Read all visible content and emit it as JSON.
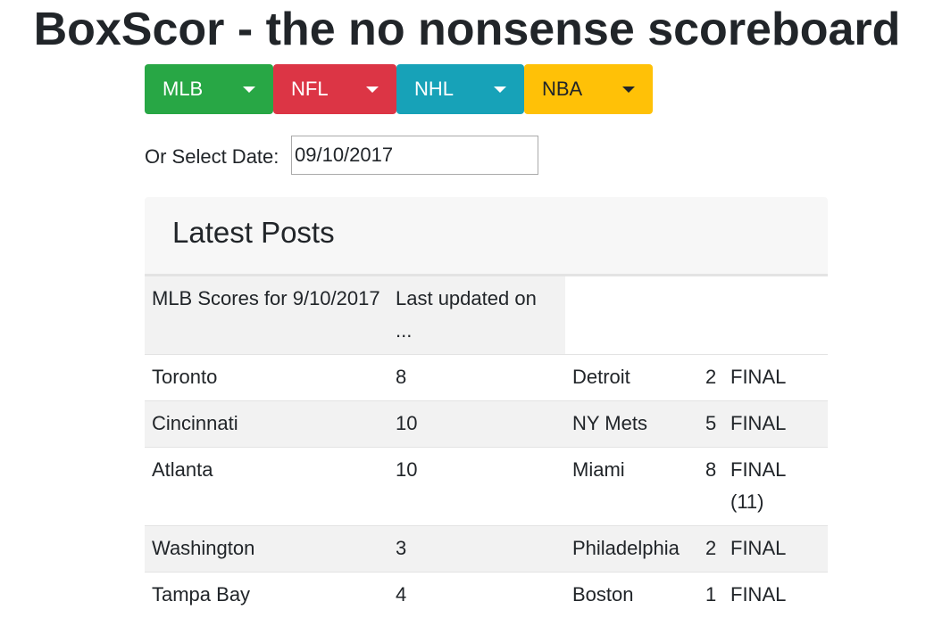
{
  "header": {
    "title": "BoxScor - the no nonsense scoreboard"
  },
  "buttons": [
    {
      "label": "MLB"
    },
    {
      "label": "NFL"
    },
    {
      "label": "NHL"
    },
    {
      "label": "NBA"
    }
  ],
  "date": {
    "label": "Or Select Date:",
    "value": "09/10/2017"
  },
  "card": {
    "title": "Latest Posts",
    "table": {
      "header": [
        "MLB Scores for 9/10/2017",
        "Last updated on ..."
      ],
      "rows": [
        [
          "Toronto",
          8,
          "Detroit",
          2,
          "FINAL"
        ],
        [
          "Cincinnati",
          10,
          "NY Mets",
          5,
          "FINAL"
        ],
        [
          "Atlanta",
          10,
          "Miami",
          8,
          "FINAL (11)"
        ],
        [
          "Washington",
          3,
          "Philadelphia",
          2,
          "FINAL"
        ],
        [
          "Tampa Bay",
          4,
          "Boston",
          1,
          "FINAL"
        ]
      ]
    }
  }
}
